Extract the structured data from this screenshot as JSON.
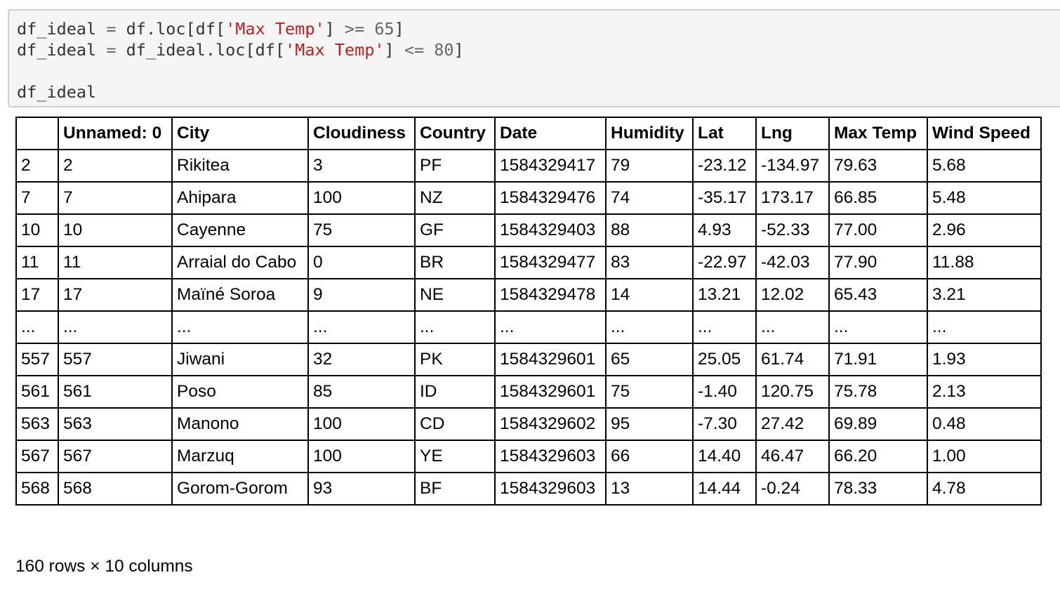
{
  "code_cell": {
    "lines": [
      [
        {
          "text": "df_ideal ",
          "type": "plain"
        },
        {
          "text": "=",
          "type": "op"
        },
        {
          "text": " df.loc[df[",
          "type": "plain"
        },
        {
          "text": "'Max Temp'",
          "type": "str"
        },
        {
          "text": "] ",
          "type": "plain"
        },
        {
          "text": ">=",
          "type": "op"
        },
        {
          "text": " ",
          "type": "plain"
        },
        {
          "text": "65",
          "type": "num"
        },
        {
          "text": "]",
          "type": "plain"
        }
      ],
      [
        {
          "text": "df_ideal ",
          "type": "plain"
        },
        {
          "text": "=",
          "type": "op"
        },
        {
          "text": " df_ideal.loc[df[",
          "type": "plain"
        },
        {
          "text": "'Max Temp'",
          "type": "str"
        },
        {
          "text": "] ",
          "type": "plain"
        },
        {
          "text": "<=",
          "type": "op"
        },
        {
          "text": " ",
          "type": "plain"
        },
        {
          "text": "80",
          "type": "num"
        },
        {
          "text": "]",
          "type": "plain"
        }
      ],
      [],
      [
        {
          "text": "df_ideal",
          "type": "plain"
        }
      ]
    ]
  },
  "dataframe": {
    "columns": [
      "",
      "Unnamed: 0",
      "City",
      "Cloudiness",
      "Country",
      "Date",
      "Humidity",
      "Lat",
      "Lng",
      "Max Temp",
      "Wind Speed"
    ],
    "rows": [
      [
        "2",
        "2",
        "Rikitea",
        "3",
        "PF",
        "1584329417",
        "79",
        "-23.12",
        "-134.97",
        "79.63",
        "5.68"
      ],
      [
        "7",
        "7",
        "Ahipara",
        "100",
        "NZ",
        "1584329476",
        "74",
        "-35.17",
        "173.17",
        "66.85",
        "5.48"
      ],
      [
        "10",
        "10",
        "Cayenne",
        "75",
        "GF",
        "1584329403",
        "88",
        "4.93",
        "-52.33",
        "77.00",
        "2.96"
      ],
      [
        "11",
        "11",
        "Arraial do Cabo",
        "0",
        "BR",
        "1584329477",
        "83",
        "-22.97",
        "-42.03",
        "77.90",
        "11.88"
      ],
      [
        "17",
        "17",
        "Maïné Soroa",
        "9",
        "NE",
        "1584329478",
        "14",
        "13.21",
        "12.02",
        "65.43",
        "3.21"
      ],
      [
        "...",
        "...",
        "...",
        "...",
        "...",
        "...",
        "...",
        "...",
        "...",
        "...",
        "..."
      ],
      [
        "557",
        "557",
        "Jiwani",
        "32",
        "PK",
        "1584329601",
        "65",
        "25.05",
        "61.74",
        "71.91",
        "1.93"
      ],
      [
        "561",
        "561",
        "Poso",
        "85",
        "ID",
        "1584329601",
        "75",
        "-1.40",
        "120.75",
        "75.78",
        "2.13"
      ],
      [
        "563",
        "563",
        "Manono",
        "100",
        "CD",
        "1584329602",
        "95",
        "-7.30",
        "27.42",
        "69.89",
        "0.48"
      ],
      [
        "567",
        "567",
        "Marzuq",
        "100",
        "YE",
        "1584329603",
        "66",
        "14.40",
        "46.47",
        "66.20",
        "1.00"
      ],
      [
        "568",
        "568",
        "Gorom-Gorom",
        "93",
        "BF",
        "1584329603",
        "13",
        "14.44",
        "-0.24",
        "78.33",
        "4.78"
      ]
    ],
    "shape_text": "160 rows × 10 columns"
  },
  "colors": {
    "code_background": "#f5f5f5",
    "code_border": "#cfcfcf",
    "string_literal": "#ba2121",
    "operator": "#666666",
    "table_border": "#000000"
  }
}
